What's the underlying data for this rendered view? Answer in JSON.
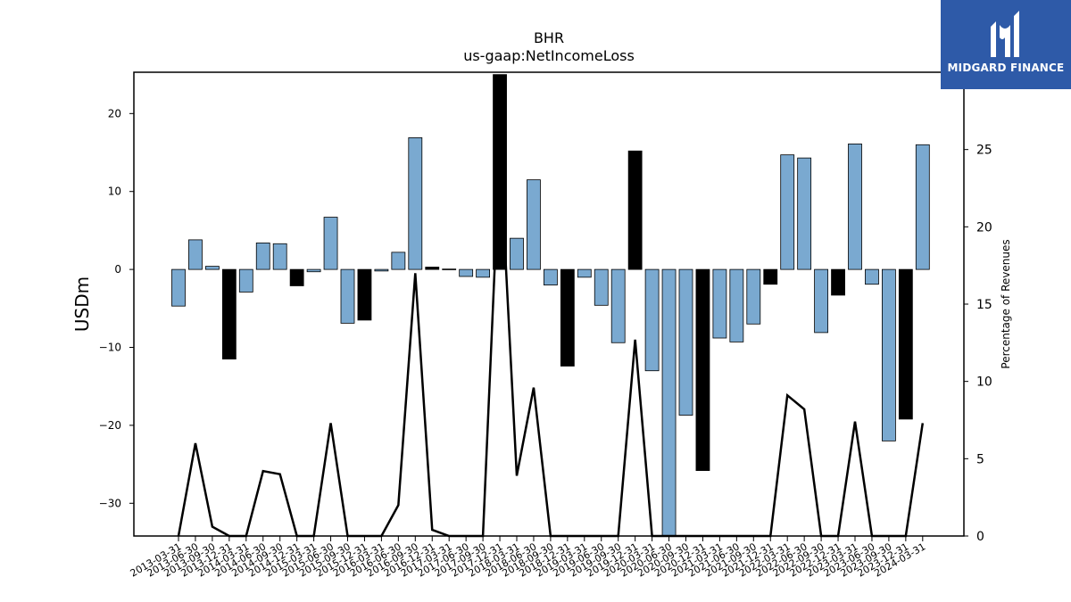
{
  "chart_data": {
    "type": "bar",
    "title": "BHR",
    "subtitle": "us-gaap:NetIncomeLoss",
    "ylabel": "USDm",
    "y2label": "Percentage of Revenues",
    "ylim": [
      -34.2,
      25.3
    ],
    "y2lim": [
      0,
      30
    ],
    "yticks": [
      -30,
      -20,
      -10,
      0,
      10,
      20
    ],
    "y2ticks": [
      0,
      5,
      10,
      15,
      20,
      25
    ],
    "categories": [
      "2013-03-31",
      "2013-06-30",
      "2013-09-30",
      "2013-12-31",
      "2014-03-31",
      "2014-06-30",
      "2014-09-30",
      "2014-12-31",
      "2015-03-31",
      "2015-06-30",
      "2015-09-30",
      "2015-12-31",
      "2016-03-31",
      "2016-06-30",
      "2016-09-30",
      "2016-12-31",
      "2017-03-31",
      "2017-06-30",
      "2017-09-30",
      "2017-12-31",
      "2018-03-31",
      "2018-06-30",
      "2018-09-30",
      "2018-12-31",
      "2019-03-31",
      "2019-06-30",
      "2019-09-30",
      "2019-12-31",
      "2020-03-31",
      "2020-06-30",
      "2020-09-30",
      "2020-12-31",
      "2021-03-31",
      "2021-06-30",
      "2021-09-30",
      "2021-12-31",
      "2022-03-31",
      "2022-06-30",
      "2022-09-30",
      "2022-12-31",
      "2023-03-31",
      "2023-06-30",
      "2023-09-30",
      "2023-12-31",
      "2024-03-31"
    ],
    "series": [
      {
        "type": "bar",
        "values": [
          -4.7,
          3.8,
          0.4,
          -11.5,
          -2.9,
          3.4,
          3.3,
          -2.1,
          -0.3,
          6.7,
          -6.9,
          -6.5,
          -0.2,
          2.2,
          16.9,
          0.3,
          0.05,
          -0.9,
          -1.0,
          25.0,
          4.0,
          11.5,
          -2.0,
          -12.4,
          -1.0,
          -4.6,
          -9.4,
          15.2,
          -13.0,
          -34.2,
          -18.7,
          -25.8,
          -8.8,
          -9.3,
          -7.0,
          -1.9,
          14.7,
          14.3,
          -8.1,
          -3.3,
          16.1,
          -1.9,
          -22.0,
          -19.2,
          16.0
        ],
        "colors": [
          "#7aa9d0",
          "#7aa9d0",
          "#7aa9d0",
          "#000000",
          "#7aa9d0",
          "#7aa9d0",
          "#7aa9d0",
          "#000000",
          "#7aa9d0",
          "#7aa9d0",
          "#7aa9d0",
          "#000000",
          "#7aa9d0",
          "#7aa9d0",
          "#7aa9d0",
          "#000000",
          "#7aa9d0",
          "#7aa9d0",
          "#7aa9d0",
          "#000000",
          "#7aa9d0",
          "#7aa9d0",
          "#7aa9d0",
          "#000000",
          "#7aa9d0",
          "#7aa9d0",
          "#7aa9d0",
          "#000000",
          "#7aa9d0",
          "#7aa9d0",
          "#7aa9d0",
          "#000000",
          "#7aa9d0",
          "#7aa9d0",
          "#7aa9d0",
          "#000000",
          "#7aa9d0",
          "#7aa9d0",
          "#7aa9d0",
          "#000000",
          "#7aa9d0",
          "#7aa9d0",
          "#7aa9d0",
          "#000000",
          "#7aa9d0"
        ]
      },
      {
        "type": "line",
        "axis": "right",
        "color": "#000000",
        "values": [
          0,
          6.0,
          0.6,
          0,
          0,
          4.2,
          4.0,
          0,
          0,
          7.3,
          0,
          0,
          0,
          2.0,
          17.0,
          0.4,
          0,
          0,
          0,
          25.0,
          3.9,
          9.6,
          0,
          0,
          0,
          0,
          0,
          12.7,
          0,
          0,
          0,
          0,
          0,
          0,
          0,
          0,
          9.1,
          8.2,
          0,
          0,
          7.4,
          0,
          0,
          0,
          7.3
        ]
      }
    ],
    "grid": false
  },
  "logo": {
    "text": "MIDGARD FINANCE",
    "background": "#2e5aa8"
  }
}
